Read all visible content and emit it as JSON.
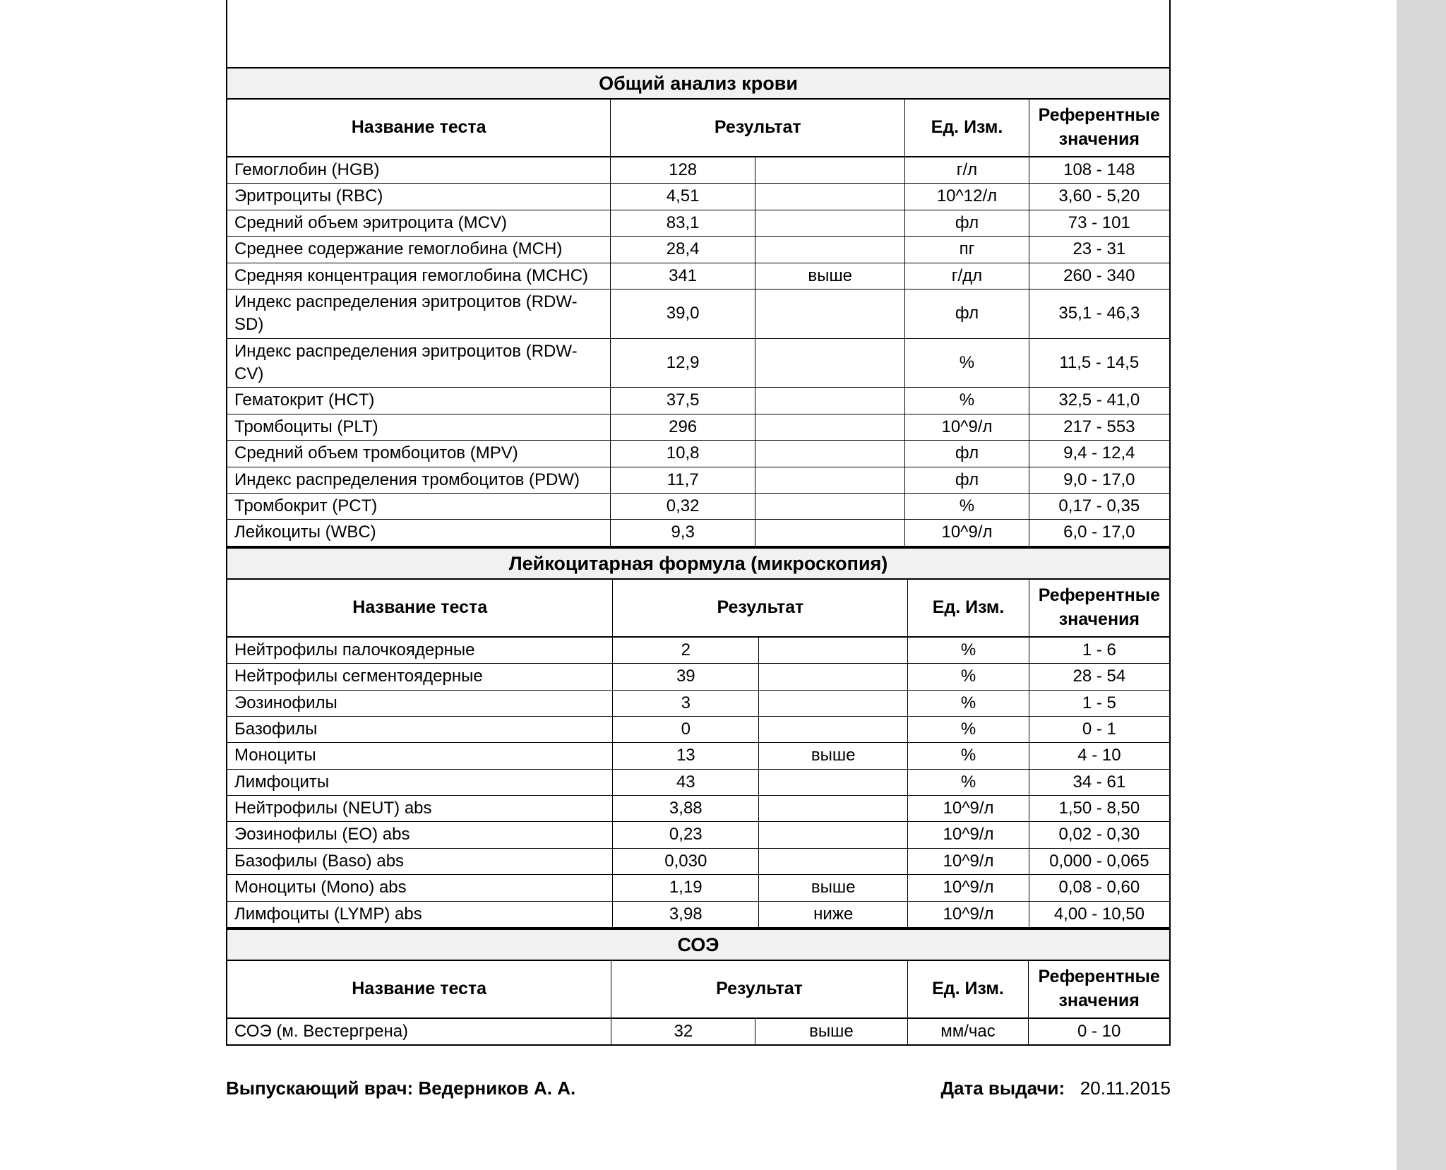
{
  "columns": {
    "name": "Название теста",
    "result": "Результат",
    "unit": "Ед. Изм.",
    "ref": "Референтные значения"
  },
  "sections": [
    {
      "title": "Общий анализ крови",
      "rows": [
        {
          "name": "Гемоглобин (HGB)",
          "result": "128",
          "flag": "",
          "unit": "г/л",
          "ref": "108 - 148"
        },
        {
          "name": "Эритроциты (RBC)",
          "result": "4,51",
          "flag": "",
          "unit": "10^12/л",
          "ref": "3,60 - 5,20"
        },
        {
          "name": "Средний объем эритроцита (MCV)",
          "result": "83,1",
          "flag": "",
          "unit": "фл",
          "ref": "73 - 101"
        },
        {
          "name": "Среднее содержание гемоглобина (MCH)",
          "result": "28,4",
          "flag": "",
          "unit": "пг",
          "ref": "23 - 31"
        },
        {
          "name": "Средняя концентрация гемоглобина (MCHC)",
          "result": "341",
          "flag": "выше",
          "unit": "г/дл",
          "ref": "260 - 340"
        },
        {
          "name": "Индекс распределения эритроцитов (RDW-SD)",
          "result": "39,0",
          "flag": "",
          "unit": "фл",
          "ref": "35,1 - 46,3"
        },
        {
          "name": "Индекс распределения эритроцитов (RDW-CV)",
          "result": "12,9",
          "flag": "",
          "unit": "%",
          "ref": "11,5 - 14,5"
        },
        {
          "name": "Гематокрит (HCT)",
          "result": "37,5",
          "flag": "",
          "unit": "%",
          "ref": "32,5 - 41,0"
        },
        {
          "name": "Тромбоциты (PLT)",
          "result": "296",
          "flag": "",
          "unit": "10^9/л",
          "ref": "217 - 553"
        },
        {
          "name": "Средний объем тромбоцитов (MPV)",
          "result": "10,8",
          "flag": "",
          "unit": "фл",
          "ref": "9,4 - 12,4"
        },
        {
          "name": "Индекс распределения тромбоцитов (PDW)",
          "result": "11,7",
          "flag": "",
          "unit": "фл",
          "ref": "9,0 - 17,0"
        },
        {
          "name": "Тромбокрит (PCT)",
          "result": "0,32",
          "flag": "",
          "unit": "%",
          "ref": "0,17 - 0,35"
        },
        {
          "name": "Лейкоциты (WBC)",
          "result": "9,3",
          "flag": "",
          "unit": "10^9/л",
          "ref": "6,0 - 17,0"
        }
      ]
    },
    {
      "title": "Лейкоцитарная формула (микроскопия)",
      "rows": [
        {
          "name": "Нейтрофилы палочкоядерные",
          "result": "2",
          "flag": "",
          "unit": "%",
          "ref": "1 - 6"
        },
        {
          "name": "Нейтрофилы сегментоядерные",
          "result": "39",
          "flag": "",
          "unit": "%",
          "ref": "28 - 54"
        },
        {
          "name": "Эозинофилы",
          "result": "3",
          "flag": "",
          "unit": "%",
          "ref": "1 - 5"
        },
        {
          "name": "Базофилы",
          "result": "0",
          "flag": "",
          "unit": "%",
          "ref": "0 - 1"
        },
        {
          "name": "Моноциты",
          "result": "13",
          "flag": "выше",
          "unit": "%",
          "ref": "4 - 10"
        },
        {
          "name": "Лимфоциты",
          "result": "43",
          "flag": "",
          "unit": "%",
          "ref": "34 - 61"
        },
        {
          "name": "Нейтрофилы (NEUT) abs",
          "result": "3,88",
          "flag": "",
          "unit": "10^9/л",
          "ref": "1,50 - 8,50"
        },
        {
          "name": "Эозинофилы (EO) abs",
          "result": "0,23",
          "flag": "",
          "unit": "10^9/л",
          "ref": "0,02 - 0,30"
        },
        {
          "name": "Базофилы (Baso) abs",
          "result": "0,030",
          "flag": "",
          "unit": "10^9/л",
          "ref": "0,000 - 0,065"
        },
        {
          "name": "Моноциты (Mono) abs",
          "result": "1,19",
          "flag": "выше",
          "unit": "10^9/л",
          "ref": "0,08 - 0,60"
        },
        {
          "name": "Лимфоциты (LYMP) abs",
          "result": "3,98",
          "flag": "ниже",
          "unit": "10^9/л",
          "ref": "4,00 - 10,50"
        }
      ]
    },
    {
      "title": "СОЭ",
      "rows": [
        {
          "name": "СОЭ (м. Вестергрена)",
          "result": "32",
          "flag": "выше",
          "unit": "мм/час",
          "ref": "0 - 10"
        }
      ]
    }
  ],
  "footer": {
    "doctor_label": "Выпускающий врач:",
    "doctor_name": "Ведерников А. А.",
    "date_label": "Дата выдачи:",
    "date_value": "20.11.2015"
  }
}
